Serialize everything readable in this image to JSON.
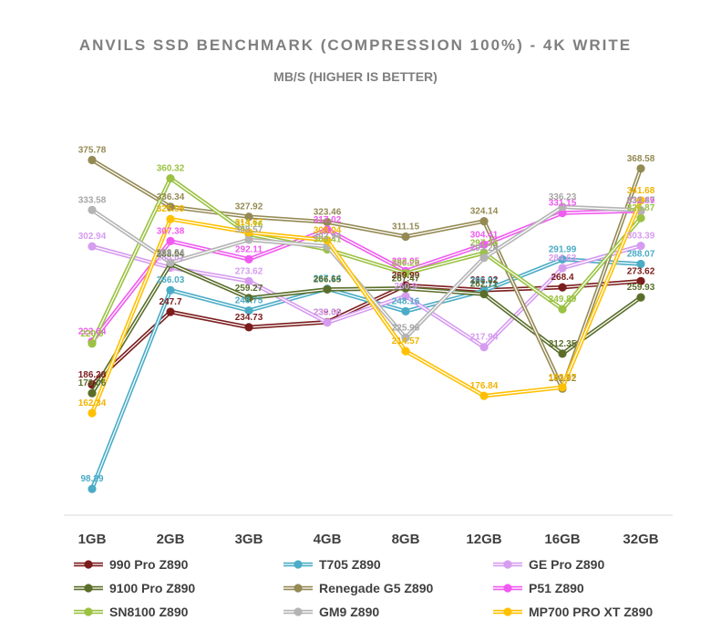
{
  "title": "ANVILS SSD BENCHMARK (COMPRESSION 100%) - 4K WRITE",
  "subtitle": "MB/S (HIGHER IS BETTER)",
  "chart_data": {
    "type": "line",
    "title": "ANVILS SSD BENCHMARK (COMPRESSION 100%) - 4K WRITE",
    "subtitle": "MB/S (HIGHER IS BETTER)",
    "categories": [
      "1GB",
      "2GB",
      "3GB",
      "4GB",
      "8GB",
      "12GB",
      "16GB",
      "32GB"
    ],
    "ylim": [
      80,
      400
    ],
    "grid": false,
    "legend_position": "bottom",
    "series": [
      {
        "name": "990 Pro Z890",
        "color": "#7b1c1c",
        "values": [
          186.28,
          247.7,
          234.73,
          239.02,
          269.99,
          266.02,
          268.4,
          273.62
        ]
      },
      {
        "name": "T705 Z890",
        "color": "#4aacc6",
        "values": [
          98.29,
          266.03,
          248.75,
          267.14,
          248.16,
          265.51,
          291.99,
          288.07
        ]
      },
      {
        "name": "GE Pro Z890",
        "color": "#d69cf0",
        "values": [
          302.94,
          285.01,
          273.62,
          238.66,
          260.9,
          217.94,
          284.63,
          303.39
        ]
      },
      {
        "name": "9100 Pro Z890",
        "color": "#5a6e2a",
        "values": [
          179.06,
          288.04,
          259.27,
          266.65,
          267.47,
          262.71,
          212.35,
          259.93
        ]
      },
      {
        "name": "Renegade G5 Z890",
        "color": "#948a54",
        "values": [
          375.78,
          336.34,
          327.92,
          323.46,
          311.15,
          324.14,
          182.92,
          368.58
        ]
      },
      {
        "name": "P51 Z890",
        "color": "#f05af0",
        "values": [
          222.64,
          307.38,
          292.11,
          317.02,
          282.05,
          304.41,
          331.15,
          332.89
        ]
      },
      {
        "name": "SN8100 Z890",
        "color": "#9bc243",
        "values": [
          220.9,
          360.32,
          313.16,
          300.41,
          280.26,
          297.38,
          249.89,
          326.87
        ]
      },
      {
        "name": "GM9 Z890",
        "color": "#b4b4b4",
        "values": [
          333.58,
          289.24,
          308.57,
          302.94,
          225.96,
          293.24,
          336.23,
          333.47
        ]
      },
      {
        "name": "MP700 PRO XT Z890",
        "color": "#ffc000",
        "values": [
          162.34,
          325.99,
          314.67,
          308.04,
          214.57,
          176.84,
          183.97,
          341.68
        ]
      }
    ]
  }
}
